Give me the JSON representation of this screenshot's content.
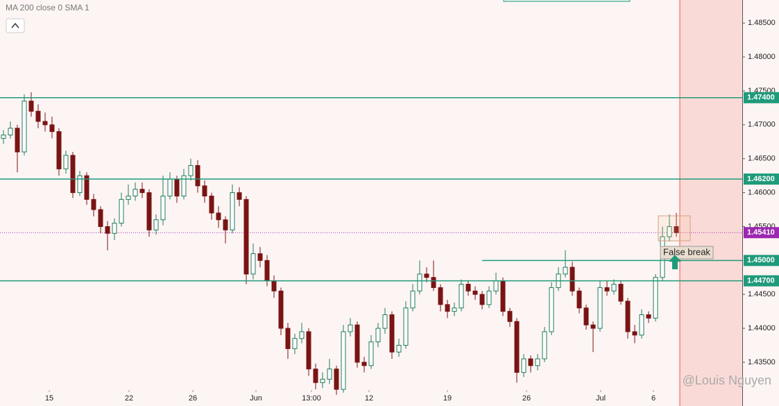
{
  "chart_data": {
    "type": "candlestick",
    "indicator_label": "MA 200 close 0 SMA 1",
    "up_color": "#1f7a5a",
    "down_color": "#7a1414",
    "ohlc": [
      [
        1.468,
        1.4692,
        1.4672,
        1.4685
      ],
      [
        1.4685,
        1.4705,
        1.468,
        1.4695
      ],
      [
        1.4695,
        1.47,
        1.463,
        1.466
      ],
      [
        1.466,
        1.4745,
        1.4655,
        1.4735
      ],
      [
        1.4735,
        1.4748,
        1.4712,
        1.472
      ],
      [
        1.472,
        1.473,
        1.4695,
        1.4705
      ],
      [
        1.4705,
        1.4718,
        1.469,
        1.47
      ],
      [
        1.47,
        1.4712,
        1.468,
        1.469
      ],
      [
        1.469,
        1.4695,
        1.4625,
        1.4635
      ],
      [
        1.4635,
        1.4662,
        1.4628,
        1.4655
      ],
      [
        1.4655,
        1.466,
        1.4592,
        1.46
      ],
      [
        1.46,
        1.4632,
        1.4595,
        1.4625
      ],
      [
        1.4625,
        1.463,
        1.4582,
        1.459
      ],
      [
        1.459,
        1.4598,
        1.4565,
        1.4575
      ],
      [
        1.4575,
        1.458,
        1.454,
        1.455
      ],
      [
        1.455,
        1.4558,
        1.4515,
        1.454
      ],
      [
        1.454,
        1.4562,
        1.453,
        1.4555
      ],
      [
        1.4555,
        1.46,
        1.455,
        1.459
      ],
      [
        1.459,
        1.4612,
        1.4582,
        1.4595
      ],
      [
        1.4595,
        1.4615,
        1.4588,
        1.4605
      ],
      [
        1.4605,
        1.4615,
        1.4592,
        1.46
      ],
      [
        1.46,
        1.4605,
        1.4535,
        1.4545
      ],
      [
        1.4545,
        1.4568,
        1.4538,
        1.456
      ],
      [
        1.456,
        1.4625,
        1.4552,
        1.4595
      ],
      [
        1.4595,
        1.463,
        1.459,
        1.462
      ],
      [
        1.462,
        1.4625,
        1.4585,
        1.4595
      ],
      [
        1.4595,
        1.4635,
        1.459,
        1.4625
      ],
      [
        1.4625,
        1.465,
        1.4618,
        1.464
      ],
      [
        1.464,
        1.4648,
        1.46,
        1.461
      ],
      [
        1.461,
        1.4618,
        1.4585,
        1.4595
      ],
      [
        1.4595,
        1.46,
        1.456,
        1.457
      ],
      [
        1.457,
        1.458,
        1.4548,
        1.456
      ],
      [
        1.456,
        1.4565,
        1.4525,
        1.4545
      ],
      [
        1.4545,
        1.4612,
        1.454,
        1.46
      ],
      [
        1.46,
        1.4608,
        1.458,
        1.459
      ],
      [
        1.459,
        1.4595,
        1.4465,
        1.448
      ],
      [
        1.448,
        1.4525,
        1.4472,
        1.451
      ],
      [
        1.451,
        1.452,
        1.449,
        1.45
      ],
      [
        1.45,
        1.4508,
        1.4462,
        1.447
      ],
      [
        1.447,
        1.4478,
        1.4445,
        1.4455
      ],
      [
        1.4455,
        1.446,
        1.439,
        1.44
      ],
      [
        1.44,
        1.4408,
        1.4355,
        1.437
      ],
      [
        1.437,
        1.4392,
        1.4362,
        1.4385
      ],
      [
        1.4385,
        1.4408,
        1.4378,
        1.4395
      ],
      [
        1.4395,
        1.44,
        1.433,
        1.434
      ],
      [
        1.434,
        1.4348,
        1.431,
        1.432
      ],
      [
        1.432,
        1.4335,
        1.4312,
        1.4325
      ],
      [
        1.4325,
        1.4355,
        1.4318,
        1.434
      ],
      [
        1.434,
        1.4345,
        1.4302,
        1.431
      ],
      [
        1.431,
        1.4405,
        1.4305,
        1.4395
      ],
      [
        1.4395,
        1.4415,
        1.4388,
        1.4405
      ],
      [
        1.4405,
        1.441,
        1.4342,
        1.435
      ],
      [
        1.435,
        1.4358,
        1.4335,
        1.4345
      ],
      [
        1.4345,
        1.439,
        1.434,
        1.438
      ],
      [
        1.438,
        1.4408,
        1.4372,
        1.44
      ],
      [
        1.44,
        1.443,
        1.4392,
        1.442
      ],
      [
        1.442,
        1.4425,
        1.4355,
        1.4365
      ],
      [
        1.4365,
        1.4385,
        1.4358,
        1.4375
      ],
      [
        1.4375,
        1.444,
        1.437,
        1.443
      ],
      [
        1.443,
        1.4465,
        1.4425,
        1.4455
      ],
      [
        1.4455,
        1.45,
        1.445,
        1.448
      ],
      [
        1.448,
        1.449,
        1.4468,
        1.4475
      ],
      [
        1.4475,
        1.45,
        1.4455,
        1.446
      ],
      [
        1.446,
        1.4465,
        1.4425,
        1.4435
      ],
      [
        1.4435,
        1.4442,
        1.4415,
        1.4425
      ],
      [
        1.4425,
        1.4438,
        1.4418,
        1.443
      ],
      [
        1.443,
        1.4472,
        1.4425,
        1.4465
      ],
      [
        1.4465,
        1.447,
        1.4448,
        1.4455
      ],
      [
        1.4455,
        1.4462,
        1.4442,
        1.445
      ],
      [
        1.445,
        1.4455,
        1.4428,
        1.4435
      ],
      [
        1.4435,
        1.4462,
        1.443,
        1.4455
      ],
      [
        1.4455,
        1.4482,
        1.445,
        1.447
      ],
      [
        1.447,
        1.4475,
        1.4418,
        1.4425
      ],
      [
        1.4425,
        1.443,
        1.4402,
        1.441
      ],
      [
        1.441,
        1.4415,
        1.432,
        1.4335
      ],
      [
        1.4335,
        1.4362,
        1.4328,
        1.4355
      ],
      [
        1.4355,
        1.436,
        1.4335,
        1.4345
      ],
      [
        1.4345,
        1.4362,
        1.4338,
        1.4355
      ],
      [
        1.4355,
        1.4402,
        1.435,
        1.4395
      ],
      [
        1.4395,
        1.4468,
        1.439,
        1.446
      ],
      [
        1.446,
        1.449,
        1.4455,
        1.448
      ],
      [
        1.448,
        1.4515,
        1.4475,
        1.449
      ],
      [
        1.449,
        1.4498,
        1.4448,
        1.4455
      ],
      [
        1.4455,
        1.446,
        1.4422,
        1.443
      ],
      [
        1.443,
        1.4435,
        1.4398,
        1.4405
      ],
      [
        1.4405,
        1.441,
        1.4365,
        1.44
      ],
      [
        1.44,
        1.447,
        1.4395,
        1.446
      ],
      [
        1.446,
        1.447,
        1.4448,
        1.4455
      ],
      [
        1.4455,
        1.4472,
        1.445,
        1.4465
      ],
      [
        1.4465,
        1.447,
        1.4435,
        1.444
      ],
      [
        1.444,
        1.4445,
        1.4385,
        1.4395
      ],
      [
        1.4395,
        1.4405,
        1.4378,
        1.439
      ],
      [
        1.439,
        1.4428,
        1.4385,
        1.442
      ],
      [
        1.442,
        1.4425,
        1.4408,
        1.4415
      ],
      [
        1.4415,
        1.448,
        1.441,
        1.4475
      ],
      [
        1.4475,
        1.455,
        1.447,
        1.4535
      ],
      [
        1.4535,
        1.4568,
        1.4528,
        1.455
      ],
      [
        1.455,
        1.457,
        1.4535,
        1.4541
      ]
    ],
    "xlim": [
      -0.5,
      106.5
    ],
    "xticks": [
      {
        "value": 6.6,
        "label": "15"
      },
      {
        "value": 18.1,
        "label": "22"
      },
      {
        "value": 27.3,
        "label": "26"
      },
      {
        "value": 36.4,
        "label": "Jun"
      },
      {
        "value": 44.4,
        "label": "13:00"
      },
      {
        "value": 52.7,
        "label": "12"
      },
      {
        "value": 64,
        "label": "19"
      },
      {
        "value": 75.4,
        "label": "26"
      },
      {
        "value": 86.1,
        "label": "Jul"
      },
      {
        "value": 93.7,
        "label": "6"
      }
    ],
    "ylim": [
      1.4309,
      1.4884
    ],
    "yticks": [
      {
        "value": 1.485,
        "label": "1.48500"
      },
      {
        "value": 1.48,
        "label": "1.48000"
      },
      {
        "value": 1.475,
        "label": "1.47500"
      },
      {
        "value": 1.47,
        "label": "1.47000"
      },
      {
        "value": 1.465,
        "label": "1.46500"
      },
      {
        "value": 1.46,
        "label": "1.46000"
      },
      {
        "value": 1.455,
        "label": "1.45500"
      },
      {
        "value": 1.445,
        "label": "1.44500"
      },
      {
        "value": 1.44,
        "label": "1.44000"
      },
      {
        "value": 1.435,
        "label": "1.43500"
      }
    ],
    "level_color": "#1f9a7a",
    "levels": [
      {
        "value": 1.474,
        "label": "1.47400"
      },
      {
        "value": 1.462,
        "label": "1.46200"
      },
      {
        "value": 1.45,
        "label": "1.45000",
        "start": 69
      },
      {
        "value": 1.447,
        "label": "1.44700"
      }
    ],
    "last_price": {
      "value": 1.4541,
      "label": "1.45410"
    },
    "last_price_color": "#9c27b0",
    "annotation": "False break",
    "watermark": "@Louis Nguyen"
  }
}
